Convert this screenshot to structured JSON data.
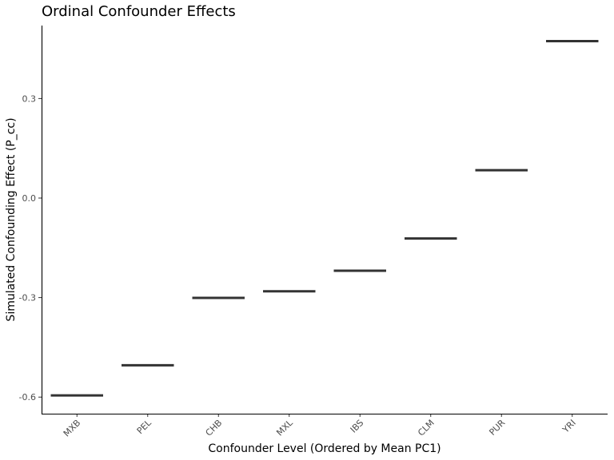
{
  "chart_data": {
    "type": "scatter",
    "mark": "crossbar-line",
    "title": "Ordinal Confounder Effects",
    "xlabel": "Confounder Level (Ordered by Mean PC1)",
    "ylabel": "Simulated Confounding Effect (P_cc)",
    "categories": [
      "MXB",
      "PEL",
      "CHB",
      "MXL",
      "IBS",
      "CLM",
      "PUR",
      "YRI"
    ],
    "values": [
      -0.595,
      -0.504,
      -0.301,
      -0.281,
      -0.219,
      -0.122,
      0.084,
      0.473
    ],
    "yticks": [
      0.3,
      0.0,
      -0.3,
      -0.6
    ],
    "ytick_labels": [
      "0.3",
      "0.0",
      "-0.3",
      "-0.6"
    ],
    "ylim": [
      -0.65,
      0.52
    ],
    "grid": false,
    "legend": "none",
    "colors": {
      "mark": "#333333",
      "axis": "#000000",
      "tick_text": "#4d4d4d"
    }
  }
}
